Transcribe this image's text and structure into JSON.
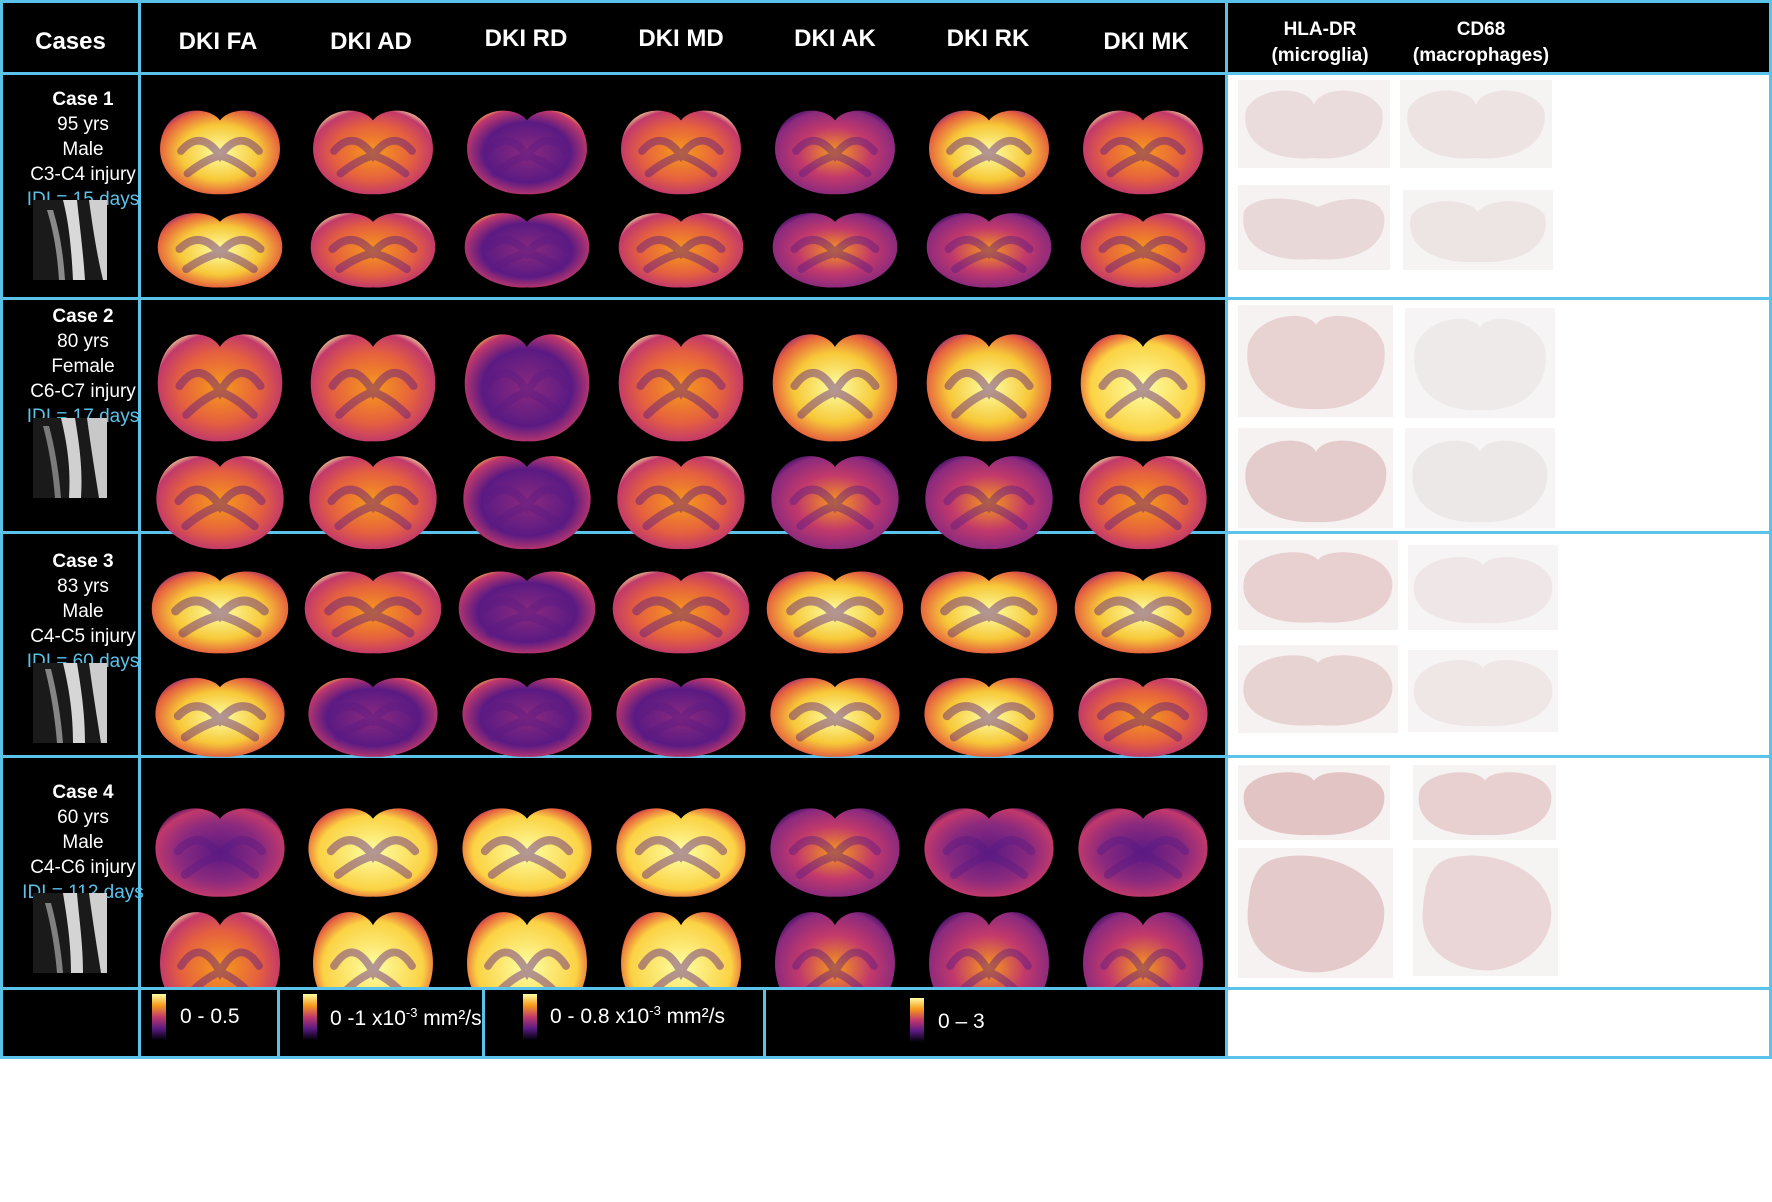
{
  "headers": {
    "cases": "Cases",
    "dki": [
      "DKI FA",
      "DKI AD",
      "DKI RD",
      "DKI MD",
      "DKI AK",
      "DKI RK",
      "DKI MK"
    ],
    "hla_title": "HLA-DR",
    "hla_sub": "(microglia)",
    "cd68_title": "CD68",
    "cd68_sub": "(macrophages)"
  },
  "cases": [
    {
      "title": "Case 1",
      "age": "95 yrs",
      "sex": "Male",
      "injury": "C3-C4 injury",
      "idi": "IDI = 15 days"
    },
    {
      "title": "Case 2",
      "age": "80 yrs",
      "sex": "Female",
      "injury": "C6-C7 injury",
      "idi": "IDI = 17 days"
    },
    {
      "title": "Case 3",
      "age": "83 yrs",
      "sex": "Male",
      "injury": "C4-C5 injury",
      "idi": "IDI = 60 days"
    },
    {
      "title": "Case 4",
      "age": "60 yrs",
      "sex": "Male",
      "injury": "C4-C6 injury",
      "idi": "IDI = 112 days"
    }
  ],
  "colorbars": {
    "fa": {
      "pre": "0 - 0.5",
      "sup": "",
      "post": ""
    },
    "axial": {
      "pre": "0 -1 x10",
      "sup": "-3",
      "post": " mm²/s"
    },
    "radial": {
      "pre": "0 - 0.8 x10",
      "sup": "-3",
      "post": " mm²/s"
    },
    "kurt": {
      "pre": "0 – 3",
      "sup": "",
      "post": ""
    }
  },
  "colors": {
    "border": "#5bc2ea",
    "idi_text": "#5bc2ea",
    "colormap": [
      "#000004",
      "#2c0b5a",
      "#5a1a83",
      "#8b2a7e",
      "#c2396b",
      "#e5603f",
      "#f79a1a",
      "#fbd243",
      "#fcffa4"
    ]
  }
}
